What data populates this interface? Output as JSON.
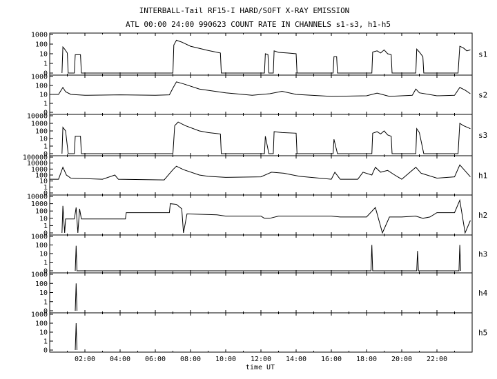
{
  "chart_data": {
    "type": "line",
    "title": "INTERBALL-Tail RF15-I HARD/SOFT X-RAY EMISSION",
    "subtitle": "ATL 00:00 24:00 990623  COUNT RATE IN CHANNELS s1-s3, h1-h5",
    "xlabel": "time UT",
    "x_range_hours": [
      0,
      24
    ],
    "x_ticks": [
      {
        "hour": 2,
        "label": "02:00"
      },
      {
        "hour": 4,
        "label": "04:00"
      },
      {
        "hour": 6,
        "label": "06:00"
      },
      {
        "hour": 8,
        "label": "08:00"
      },
      {
        "hour": 10,
        "label": "10:00"
      },
      {
        "hour": 12,
        "label": "12:00"
      },
      {
        "hour": 14,
        "label": "14:00"
      },
      {
        "hour": 16,
        "label": "16:00"
      },
      {
        "hour": 18,
        "label": "18:00"
      },
      {
        "hour": 20,
        "label": "20:00"
      },
      {
        "hour": 22,
        "label": "22:00"
      }
    ],
    "y_scale": "log",
    "grid": false,
    "panels": [
      {
        "name": "s1",
        "ylim_log": [
          0,
          3
        ],
        "y_ticks": [
          "1000",
          "100",
          "10",
          "1",
          "0"
        ],
        "points": [
          [
            0.7,
            0
          ],
          [
            0.75,
            50
          ],
          [
            0.85,
            30
          ],
          [
            1.0,
            12
          ],
          [
            1.05,
            0
          ],
          [
            1.4,
            0
          ],
          [
            1.45,
            8
          ],
          [
            1.75,
            8
          ],
          [
            1.8,
            0
          ],
          [
            7.0,
            0
          ],
          [
            7.05,
            80
          ],
          [
            7.2,
            250
          ],
          [
            7.5,
            160
          ],
          [
            8.0,
            60
          ],
          [
            9.0,
            22
          ],
          [
            9.7,
            12
          ],
          [
            9.75,
            0
          ],
          [
            12.2,
            0
          ],
          [
            12.25,
            10
          ],
          [
            12.4,
            8
          ],
          [
            12.45,
            0
          ],
          [
            12.7,
            0
          ],
          [
            12.75,
            20
          ],
          [
            13.0,
            14
          ],
          [
            13.5,
            12
          ],
          [
            14.0,
            10
          ],
          [
            14.05,
            0
          ],
          [
            16.1,
            0
          ],
          [
            16.15,
            5
          ],
          [
            16.3,
            5
          ],
          [
            16.35,
            0
          ],
          [
            18.3,
            0
          ],
          [
            18.35,
            15
          ],
          [
            18.6,
            20
          ],
          [
            18.8,
            12
          ],
          [
            19.0,
            25
          ],
          [
            19.2,
            10
          ],
          [
            19.4,
            8
          ],
          [
            19.45,
            0
          ],
          [
            20.8,
            0
          ],
          [
            20.85,
            30
          ],
          [
            21.0,
            15
          ],
          [
            21.2,
            5
          ],
          [
            21.25,
            0
          ],
          [
            23.2,
            0
          ],
          [
            23.3,
            60
          ],
          [
            23.5,
            40
          ],
          [
            23.7,
            20
          ],
          [
            23.9,
            25
          ]
        ]
      },
      {
        "name": "s2",
        "ylim_log": [
          0,
          3
        ],
        "y_ticks": [
          "1000",
          "100",
          "10",
          "1",
          "0"
        ],
        "points": [
          [
            0.0,
            10
          ],
          [
            0.5,
            10
          ],
          [
            0.75,
            60
          ],
          [
            0.9,
            20
          ],
          [
            1.2,
            10
          ],
          [
            2.0,
            8
          ],
          [
            4.0,
            9
          ],
          [
            6.0,
            8
          ],
          [
            6.8,
            9
          ],
          [
            7.0,
            50
          ],
          [
            7.2,
            250
          ],
          [
            7.6,
            150
          ],
          [
            8.5,
            40
          ],
          [
            10.0,
            15
          ],
          [
            11.5,
            8
          ],
          [
            12.5,
            12
          ],
          [
            13.2,
            22
          ],
          [
            14.0,
            10
          ],
          [
            16.0,
            6
          ],
          [
            18.0,
            7
          ],
          [
            18.6,
            14
          ],
          [
            19.3,
            6
          ],
          [
            20.6,
            8
          ],
          [
            20.8,
            40
          ],
          [
            21.0,
            15
          ],
          [
            22.0,
            7
          ],
          [
            23.0,
            8
          ],
          [
            23.3,
            60
          ],
          [
            23.6,
            30
          ],
          [
            23.9,
            12
          ]
        ]
      },
      {
        "name": "s3",
        "ylim_log": [
          0,
          4
        ],
        "y_ticks": [
          "10000",
          "1000",
          "100",
          "10",
          "1",
          "0"
        ],
        "points": [
          [
            0.7,
            0
          ],
          [
            0.75,
            300
          ],
          [
            0.9,
            100
          ],
          [
            1.05,
            0
          ],
          [
            1.4,
            0
          ],
          [
            1.45,
            20
          ],
          [
            1.75,
            20
          ],
          [
            1.8,
            0
          ],
          [
            7.0,
            0
          ],
          [
            7.1,
            500
          ],
          [
            7.3,
            1500
          ],
          [
            7.7,
            500
          ],
          [
            8.5,
            100
          ],
          [
            9.0,
            60
          ],
          [
            9.7,
            40
          ],
          [
            9.75,
            0
          ],
          [
            12.2,
            0
          ],
          [
            12.25,
            20
          ],
          [
            12.45,
            0
          ],
          [
            12.7,
            0
          ],
          [
            12.75,
            80
          ],
          [
            13.2,
            60
          ],
          [
            14.0,
            50
          ],
          [
            14.05,
            0
          ],
          [
            16.1,
            0
          ],
          [
            16.15,
            8
          ],
          [
            16.35,
            0
          ],
          [
            18.3,
            0
          ],
          [
            18.35,
            50
          ],
          [
            18.6,
            80
          ],
          [
            18.8,
            40
          ],
          [
            19.0,
            100
          ],
          [
            19.2,
            30
          ],
          [
            19.4,
            20
          ],
          [
            19.45,
            0
          ],
          [
            20.8,
            0
          ],
          [
            20.85,
            200
          ],
          [
            21.0,
            60
          ],
          [
            21.25,
            0
          ],
          [
            23.2,
            0
          ],
          [
            23.3,
            1000
          ],
          [
            23.5,
            500
          ],
          [
            23.9,
            200
          ]
        ]
      },
      {
        "name": "h1",
        "ylim_log": [
          0,
          5
        ],
        "y_ticks": [
          "100000",
          "10000",
          "1000",
          "100",
          "10",
          "1",
          "0"
        ],
        "points": [
          [
            0.0,
            20
          ],
          [
            0.5,
            20
          ],
          [
            0.75,
            2000
          ],
          [
            0.95,
            100
          ],
          [
            1.2,
            30
          ],
          [
            3.0,
            20
          ],
          [
            3.7,
            100
          ],
          [
            3.9,
            20
          ],
          [
            6.5,
            15
          ],
          [
            7.0,
            800
          ],
          [
            7.2,
            3000
          ],
          [
            7.6,
            800
          ],
          [
            8.5,
            100
          ],
          [
            9.0,
            60
          ],
          [
            10.0,
            40
          ],
          [
            12.0,
            50
          ],
          [
            12.6,
            300
          ],
          [
            13.3,
            200
          ],
          [
            14.2,
            60
          ],
          [
            16.0,
            20
          ],
          [
            16.2,
            300
          ],
          [
            16.5,
            20
          ],
          [
            17.5,
            20
          ],
          [
            17.8,
            300
          ],
          [
            18.3,
            100
          ],
          [
            18.5,
            2000
          ],
          [
            18.8,
            300
          ],
          [
            19.2,
            600
          ],
          [
            19.6,
            100
          ],
          [
            20.0,
            20
          ],
          [
            20.8,
            2000
          ],
          [
            21.1,
            200
          ],
          [
            22.0,
            30
          ],
          [
            23.0,
            50
          ],
          [
            23.3,
            5000
          ],
          [
            23.6,
            500
          ],
          [
            23.9,
            50
          ]
        ]
      },
      {
        "name": "h2",
        "ylim_log": [
          0,
          4
        ],
        "y_ticks": [
          "10000",
          "1000",
          "100",
          "10",
          "1",
          "0"
        ],
        "points": [
          [
            0.7,
            0
          ],
          [
            0.75,
            500
          ],
          [
            0.85,
            0
          ],
          [
            0.9,
            8
          ],
          [
            1.4,
            8
          ],
          [
            1.5,
            300
          ],
          [
            1.6,
            0
          ],
          [
            1.7,
            200
          ],
          [
            1.8,
            8
          ],
          [
            2.5,
            8
          ],
          [
            4.3,
            8
          ],
          [
            4.35,
            60
          ],
          [
            6.8,
            60
          ],
          [
            6.85,
            1000
          ],
          [
            7.2,
            800
          ],
          [
            7.5,
            200
          ],
          [
            7.6,
            0
          ],
          [
            7.8,
            40
          ],
          [
            9.5,
            30
          ],
          [
            10.0,
            20
          ],
          [
            12.0,
            20
          ],
          [
            12.2,
            10
          ],
          [
            12.5,
            10
          ],
          [
            13.0,
            20
          ],
          [
            16.0,
            20
          ],
          [
            16.5,
            15
          ],
          [
            18.0,
            15
          ],
          [
            18.5,
            300
          ],
          [
            18.9,
            0
          ],
          [
            19.3,
            15
          ],
          [
            20.0,
            15
          ],
          [
            20.8,
            20
          ],
          [
            21.2,
            10
          ],
          [
            21.6,
            15
          ],
          [
            22.0,
            60
          ],
          [
            23.0,
            60
          ],
          [
            23.3,
            3000
          ],
          [
            23.6,
            0
          ],
          [
            23.9,
            5
          ]
        ]
      },
      {
        "name": "h3",
        "ylim_log": [
          0,
          3
        ],
        "y_ticks": [
          "1000",
          "100",
          "10",
          "1",
          "0"
        ],
        "points": [
          [
            1.45,
            0
          ],
          [
            1.5,
            80
          ],
          [
            1.55,
            0
          ],
          [
            18.25,
            0
          ],
          [
            18.3,
            100
          ],
          [
            18.35,
            0
          ],
          [
            20.85,
            0
          ],
          [
            20.9,
            20
          ],
          [
            20.95,
            0
          ],
          [
            23.25,
            0
          ],
          [
            23.3,
            100
          ],
          [
            23.35,
            0
          ]
        ]
      },
      {
        "name": "h4",
        "ylim_log": [
          0,
          3
        ],
        "y_ticks": [
          "1000",
          "100",
          "10",
          "1",
          "0"
        ],
        "points": [
          [
            1.45,
            0
          ],
          [
            1.5,
            100
          ],
          [
            1.55,
            0
          ]
        ]
      },
      {
        "name": "h5",
        "ylim_log": [
          0,
          3
        ],
        "y_ticks": [
          "1000",
          "100",
          "10",
          "1",
          "0"
        ],
        "points": [
          [
            1.45,
            0
          ],
          [
            1.5,
            100
          ],
          [
            1.55,
            0
          ]
        ]
      }
    ]
  }
}
